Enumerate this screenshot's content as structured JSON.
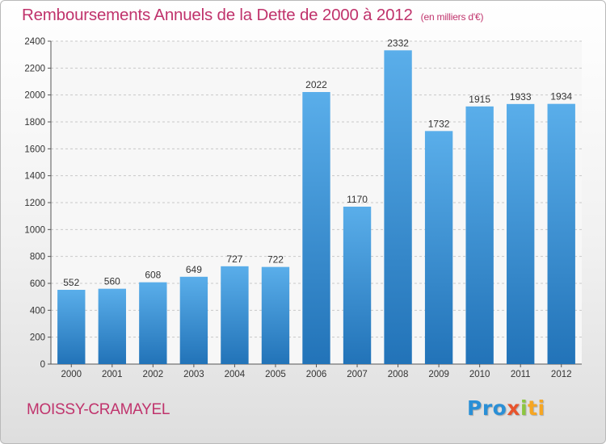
{
  "header": {
    "title": "Remboursements Annuels de la Dette de 2000 à 2012",
    "unit": "(en milliers d'€)"
  },
  "footer": {
    "commune": "MOISSY-CRAMAYEL",
    "logo_parts": [
      "Pro",
      "x",
      "i",
      "ti"
    ]
  },
  "colors": {
    "bar_top": "#5aaeea",
    "bar_bottom": "#2273b8",
    "accent": "#c0336c"
  },
  "chart_data": {
    "type": "bar",
    "title": "Remboursements Annuels de la Dette de 2000 à 2012",
    "categories": [
      "2000",
      "2001",
      "2002",
      "2003",
      "2004",
      "2005",
      "2006",
      "2007",
      "2008",
      "2009",
      "2010",
      "2011",
      "2012"
    ],
    "values": [
      552,
      560,
      608,
      649,
      727,
      722,
      2022,
      1170,
      2332,
      1732,
      1915,
      1933,
      1934
    ],
    "ylim": [
      0,
      2400
    ],
    "yticks": [
      0,
      200,
      400,
      600,
      800,
      1000,
      1200,
      1400,
      1600,
      1800,
      2000,
      2200,
      2400
    ],
    "grid": true,
    "data_labels": true
  }
}
